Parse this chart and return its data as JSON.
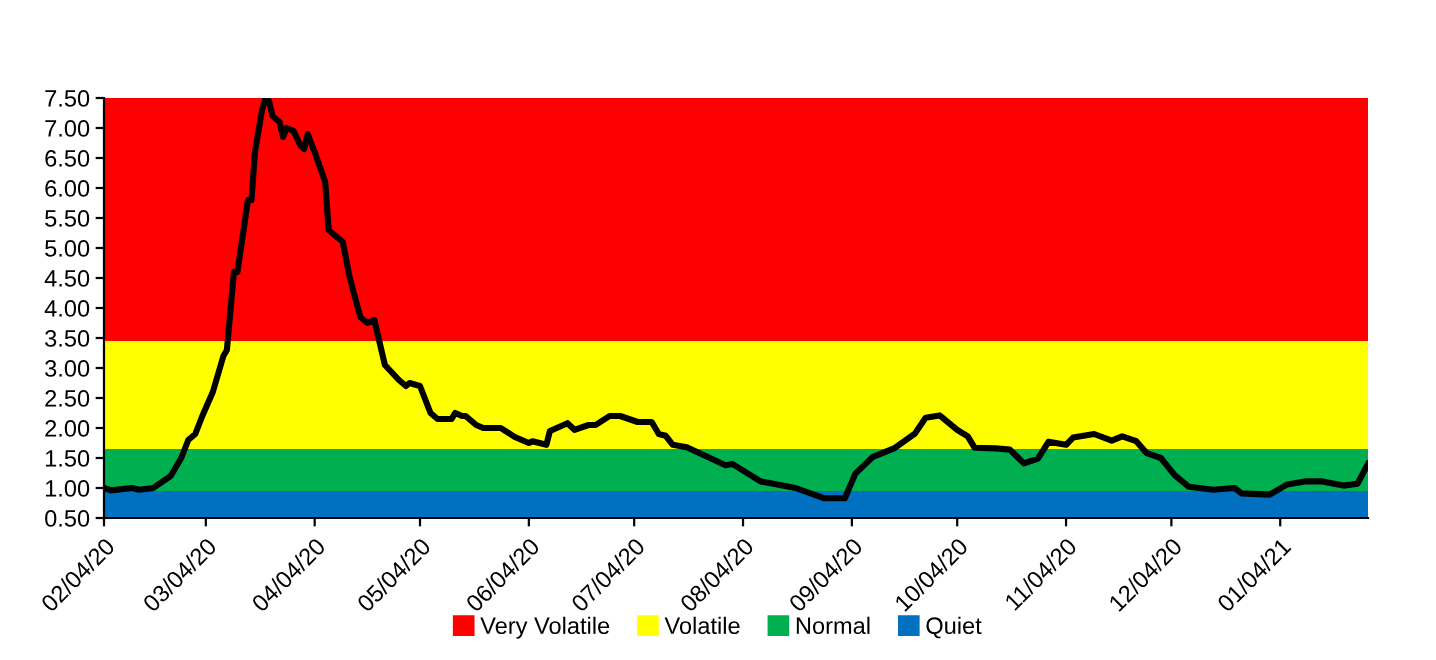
{
  "chart_data": {
    "type": "line",
    "x": [
      "2020-02-04",
      "2020-02-06",
      "2020-02-12",
      "2020-02-14",
      "2020-02-18",
      "2020-02-23",
      "2020-02-26",
      "2020-02-28",
      "2020-03-01",
      "2020-03-03",
      "2020-03-06",
      "2020-03-09",
      "2020-03-10",
      "2020-03-12",
      "2020-03-13",
      "2020-03-16",
      "2020-03-17",
      "2020-03-18",
      "2020-03-20",
      "2020-03-21",
      "2020-03-22",
      "2020-03-23",
      "2020-03-25",
      "2020-03-26",
      "2020-03-27",
      "2020-03-29",
      "2020-03-31",
      "2020-04-01",
      "2020-04-02",
      "2020-04-04",
      "2020-04-07",
      "2020-04-08",
      "2020-04-12",
      "2020-04-14",
      "2020-04-17",
      "2020-04-19",
      "2020-04-21",
      "2020-04-24",
      "2020-04-28",
      "2020-04-30",
      "2020-05-01",
      "2020-05-04",
      "2020-05-07",
      "2020-05-09",
      "2020-05-13",
      "2020-05-14",
      "2020-05-16",
      "2020-05-17",
      "2020-05-20",
      "2020-05-22",
      "2020-05-27",
      "2020-05-31",
      "2020-06-04",
      "2020-06-05",
      "2020-06-09",
      "2020-06-10",
      "2020-06-15",
      "2020-06-17",
      "2020-06-21",
      "2020-06-23",
      "2020-06-27",
      "2020-06-30",
      "2020-07-05",
      "2020-07-09",
      "2020-07-11",
      "2020-07-13",
      "2020-07-15",
      "2020-07-19",
      "2020-07-30",
      "2020-08-01",
      "2020-08-09",
      "2020-08-19",
      "2020-08-27",
      "2020-09-02",
      "2020-09-05",
      "2020-09-10",
      "2020-09-16",
      "2020-09-22",
      "2020-09-25",
      "2020-09-29",
      "2020-10-04",
      "2020-10-07",
      "2020-10-09",
      "2020-10-15",
      "2020-10-19",
      "2020-10-23",
      "2020-10-27",
      "2020-10-30",
      "2020-11-04",
      "2020-11-06",
      "2020-11-12",
      "2020-11-17",
      "2020-11-20",
      "2020-11-24",
      "2020-11-27",
      "2020-12-01",
      "2020-12-05",
      "2020-12-09",
      "2020-12-16",
      "2020-12-22",
      "2020-12-24",
      "2021-01-01",
      "2021-01-06",
      "2021-01-11",
      "2021-01-16",
      "2021-01-22",
      "2021-01-26",
      "2021-01-29"
    ],
    "series": [
      {
        "color": "#000000",
        "values": [
          1.0,
          0.96,
          1.0,
          0.97,
          1.0,
          1.2,
          1.5,
          1.8,
          1.9,
          2.2,
          2.6,
          3.2,
          3.3,
          4.6,
          4.6,
          5.8,
          5.8,
          6.6,
          7.3,
          7.5,
          7.45,
          7.2,
          7.1,
          6.85,
          7.0,
          6.95,
          6.7,
          6.65,
          6.9,
          6.6,
          6.1,
          5.3,
          5.1,
          4.5,
          3.85,
          3.75,
          3.8,
          3.05,
          2.8,
          2.7,
          2.75,
          2.7,
          2.25,
          2.15,
          2.15,
          2.25,
          2.2,
          2.2,
          2.05,
          2.0,
          2.0,
          1.85,
          1.75,
          1.78,
          1.72,
          1.95,
          2.08,
          1.97,
          2.05,
          2.05,
          2.2,
          2.2,
          2.1,
          2.1,
          1.9,
          1.87,
          1.72,
          1.68,
          1.38,
          1.4,
          1.11,
          1.0,
          0.83,
          0.83,
          1.24,
          1.52,
          1.66,
          1.91,
          2.17,
          2.21,
          1.97,
          1.86,
          1.67,
          1.66,
          1.64,
          1.41,
          1.49,
          1.77,
          1.72,
          1.84,
          1.9,
          1.79,
          1.86,
          1.78,
          1.58,
          1.5,
          1.21,
          1.02,
          0.97,
          1.0,
          0.91,
          0.89,
          1.06,
          1.11,
          1.11,
          1.04,
          1.07,
          1.4
        ]
      }
    ],
    "xlim": [
      "2020-02-04",
      "2021-01-29"
    ],
    "xticks": [
      {
        "value": "2020-02-04",
        "label": "02/04/20"
      },
      {
        "value": "2020-03-04",
        "label": "03/04/20"
      },
      {
        "value": "2020-04-04",
        "label": "04/04/20"
      },
      {
        "value": "2020-05-04",
        "label": "05/04/20"
      },
      {
        "value": "2020-06-04",
        "label": "06/04/20"
      },
      {
        "value": "2020-07-04",
        "label": "07/04/20"
      },
      {
        "value": "2020-08-04",
        "label": "08/04/20"
      },
      {
        "value": "2020-09-04",
        "label": "09/04/20"
      },
      {
        "value": "2020-10-04",
        "label": "10/04/20"
      },
      {
        "value": "2020-11-04",
        "label": "11/04/20"
      },
      {
        "value": "2020-12-04",
        "label": "12/04/20"
      },
      {
        "value": "2021-01-04",
        "label": "01/04/21"
      }
    ],
    "ylim": [
      0.5,
      7.5
    ],
    "yticks": [
      {
        "value": 0.5,
        "label": "0.50"
      },
      {
        "value": 1.0,
        "label": "1.00"
      },
      {
        "value": 1.5,
        "label": "1.50"
      },
      {
        "value": 2.0,
        "label": "2.00"
      },
      {
        "value": 2.5,
        "label": "2.50"
      },
      {
        "value": 3.0,
        "label": "3.00"
      },
      {
        "value": 3.5,
        "label": "3.50"
      },
      {
        "value": 4.0,
        "label": "4.00"
      },
      {
        "value": 4.5,
        "label": "4.50"
      },
      {
        "value": 5.0,
        "label": "5.00"
      },
      {
        "value": 5.5,
        "label": "5.50"
      },
      {
        "value": 6.0,
        "label": "6.00"
      },
      {
        "value": 6.5,
        "label": "6.50"
      },
      {
        "value": 7.0,
        "label": "7.00"
      },
      {
        "value": 7.5,
        "label": "7.50"
      }
    ],
    "bands": [
      {
        "axis": "y",
        "from": 3.45,
        "to": 7.5,
        "label": "Very Volatile",
        "color": "#ff0000"
      },
      {
        "axis": "y",
        "from": 1.65,
        "to": 3.45,
        "label": "Volatile",
        "color": "#ffff00"
      },
      {
        "axis": "y",
        "from": 0.95,
        "to": 1.65,
        "label": "Normal",
        "color": "#00b050"
      },
      {
        "axis": "y",
        "from": 0.5,
        "to": 0.95,
        "label": "Quiet",
        "color": "#0070c0"
      }
    ],
    "legend": "bottom",
    "grid": false,
    "marker": "none",
    "line_style": "solid"
  }
}
